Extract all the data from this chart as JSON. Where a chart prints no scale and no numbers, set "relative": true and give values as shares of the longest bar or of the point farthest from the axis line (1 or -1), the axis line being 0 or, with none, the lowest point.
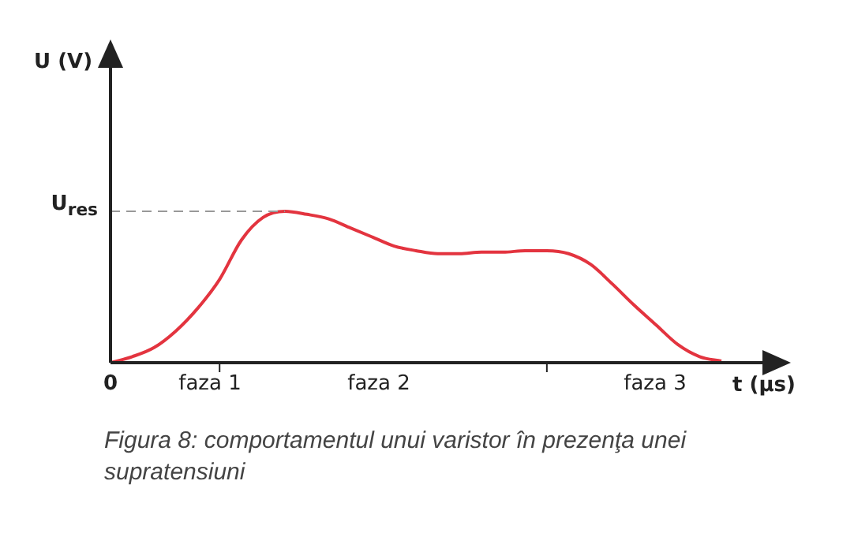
{
  "chart_data": {
    "type": "line",
    "relative": true,
    "xlabel": "t (μs)",
    "color": "#e3343f",
    "categories": [
      null,
      null,
      null,
      null,
      null,
      null,
      null,
      null,
      null,
      null,
      null,
      null,
      null,
      null,
      null,
      null,
      null,
      null,
      null,
      null,
      null,
      null,
      null,
      null,
      null,
      null,
      null,
      null,
      null
    ],
    "values": [
      0,
      0.04,
      0.1,
      0.21,
      0.36,
      0.55,
      0.81,
      0.96,
      1,
      0.98,
      0.95,
      0.89,
      0.83,
      0.77,
      0.74,
      0.72,
      0.72,
      0.73,
      0.73,
      0.74,
      0.74,
      0.72,
      0.65,
      0.52,
      0.38,
      0.25,
      0.12,
      0.04,
      0.01
    ],
    "ref_lines": [
      {
        "axis": "y",
        "value": 1,
        "label": "U$_{res}$",
        "color": "#999999",
        "line_style": "dashed"
      }
    ],
    "marker": "none",
    "line_style": "solid",
    "annotations": [
      "U (V)",
      "0",
      "faza 1",
      "faza 2",
      "faza 3",
      "Figura 8: comportamentul unui varistor în prezenţa unei supratensiuni"
    ]
  }
}
